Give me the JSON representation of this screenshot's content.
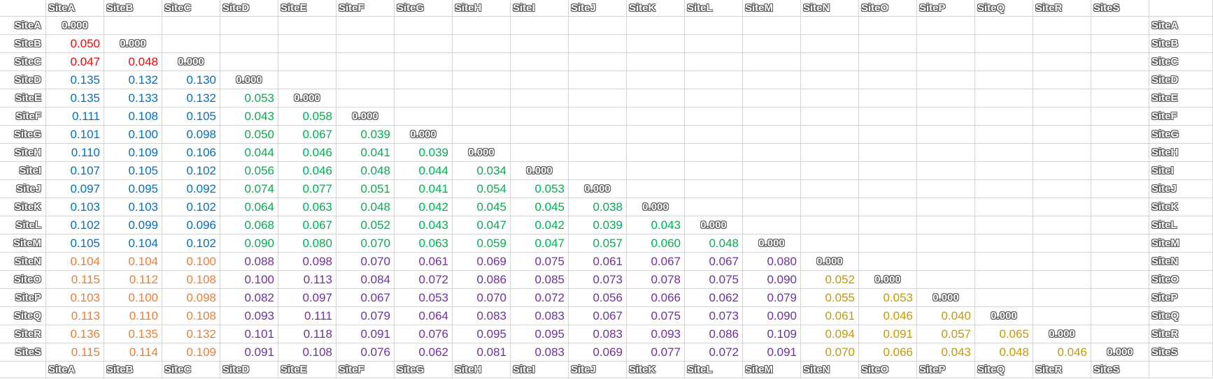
{
  "sheet": {
    "sites": [
      "SiteA",
      "SiteB",
      "SiteC",
      "SiteD",
      "SiteE",
      "SiteF",
      "SiteG",
      "SiteH",
      "SiteI",
      "SiteJ",
      "SiteK",
      "SiteL",
      "SiteM",
      "SiteN",
      "SiteO",
      "SiteP",
      "SiteQ",
      "SiteR",
      "SiteS"
    ],
    "colors": {
      "red": "#ff0000",
      "blue": "#0070c0",
      "green": "#00b050",
      "orange": "#ed7d31",
      "purple": "#7030a0",
      "gold": "#c49a00",
      "diagonal": "#ffffff"
    },
    "rows": [
      {
        "cells": [
          {
            "v": "0.000",
            "c": "diagonal"
          }
        ]
      },
      {
        "cells": [
          {
            "v": "0.050",
            "c": "red"
          },
          {
            "v": "0.000",
            "c": "diagonal"
          }
        ]
      },
      {
        "cells": [
          {
            "v": "0.047",
            "c": "red"
          },
          {
            "v": "0.048",
            "c": "red"
          },
          {
            "v": "0.000",
            "c": "diagonal"
          }
        ]
      },
      {
        "cells": [
          {
            "v": "0.135",
            "c": "blue"
          },
          {
            "v": "0.132",
            "c": "blue"
          },
          {
            "v": "0.130",
            "c": "blue"
          },
          {
            "v": "0.000",
            "c": "diagonal"
          }
        ]
      },
      {
        "cells": [
          {
            "v": "0.135",
            "c": "blue"
          },
          {
            "v": "0.133",
            "c": "blue"
          },
          {
            "v": "0.132",
            "c": "blue"
          },
          {
            "v": "0.053",
            "c": "green"
          },
          {
            "v": "0.000",
            "c": "diagonal"
          }
        ]
      },
      {
        "cells": [
          {
            "v": "0.111",
            "c": "blue"
          },
          {
            "v": "0.108",
            "c": "blue"
          },
          {
            "v": "0.105",
            "c": "blue"
          },
          {
            "v": "0.043",
            "c": "green"
          },
          {
            "v": "0.058",
            "c": "green"
          },
          {
            "v": "0.000",
            "c": "diagonal"
          }
        ]
      },
      {
        "cells": [
          {
            "v": "0.101",
            "c": "blue"
          },
          {
            "v": "0.100",
            "c": "blue"
          },
          {
            "v": "0.098",
            "c": "blue"
          },
          {
            "v": "0.050",
            "c": "green"
          },
          {
            "v": "0.067",
            "c": "green"
          },
          {
            "v": "0.039",
            "c": "green"
          },
          {
            "v": "0.000",
            "c": "diagonal"
          }
        ]
      },
      {
        "cells": [
          {
            "v": "0.110",
            "c": "blue"
          },
          {
            "v": "0.109",
            "c": "blue"
          },
          {
            "v": "0.106",
            "c": "blue"
          },
          {
            "v": "0.044",
            "c": "green"
          },
          {
            "v": "0.046",
            "c": "green"
          },
          {
            "v": "0.041",
            "c": "green"
          },
          {
            "v": "0.039",
            "c": "green"
          },
          {
            "v": "0.000",
            "c": "diagonal"
          }
        ]
      },
      {
        "cells": [
          {
            "v": "0.107",
            "c": "blue"
          },
          {
            "v": "0.105",
            "c": "blue"
          },
          {
            "v": "0.102",
            "c": "blue"
          },
          {
            "v": "0.056",
            "c": "green"
          },
          {
            "v": "0.046",
            "c": "green"
          },
          {
            "v": "0.048",
            "c": "green"
          },
          {
            "v": "0.044",
            "c": "green"
          },
          {
            "v": "0.034",
            "c": "green"
          },
          {
            "v": "0.000",
            "c": "diagonal"
          }
        ]
      },
      {
        "cells": [
          {
            "v": "0.097",
            "c": "blue"
          },
          {
            "v": "0.095",
            "c": "blue"
          },
          {
            "v": "0.092",
            "c": "blue"
          },
          {
            "v": "0.074",
            "c": "green"
          },
          {
            "v": "0.077",
            "c": "green"
          },
          {
            "v": "0.051",
            "c": "green"
          },
          {
            "v": "0.041",
            "c": "green"
          },
          {
            "v": "0.054",
            "c": "green"
          },
          {
            "v": "0.053",
            "c": "green"
          },
          {
            "v": "0.000",
            "c": "diagonal"
          }
        ]
      },
      {
        "cells": [
          {
            "v": "0.103",
            "c": "blue"
          },
          {
            "v": "0.103",
            "c": "blue"
          },
          {
            "v": "0.102",
            "c": "blue"
          },
          {
            "v": "0.064",
            "c": "green"
          },
          {
            "v": "0.063",
            "c": "green"
          },
          {
            "v": "0.048",
            "c": "green"
          },
          {
            "v": "0.042",
            "c": "green"
          },
          {
            "v": "0.045",
            "c": "green"
          },
          {
            "v": "0.045",
            "c": "green"
          },
          {
            "v": "0.038",
            "c": "green"
          },
          {
            "v": "0.000",
            "c": "diagonal"
          }
        ]
      },
      {
        "cells": [
          {
            "v": "0.102",
            "c": "blue"
          },
          {
            "v": "0.099",
            "c": "blue"
          },
          {
            "v": "0.096",
            "c": "blue"
          },
          {
            "v": "0.068",
            "c": "green"
          },
          {
            "v": "0.067",
            "c": "green"
          },
          {
            "v": "0.052",
            "c": "green"
          },
          {
            "v": "0.043",
            "c": "green"
          },
          {
            "v": "0.047",
            "c": "green"
          },
          {
            "v": "0.042",
            "c": "green"
          },
          {
            "v": "0.039",
            "c": "green"
          },
          {
            "v": "0.043",
            "c": "green"
          },
          {
            "v": "0.000",
            "c": "diagonal"
          }
        ]
      },
      {
        "cells": [
          {
            "v": "0.105",
            "c": "blue"
          },
          {
            "v": "0.104",
            "c": "blue"
          },
          {
            "v": "0.102",
            "c": "blue"
          },
          {
            "v": "0.090",
            "c": "green"
          },
          {
            "v": "0.080",
            "c": "green"
          },
          {
            "v": "0.070",
            "c": "green"
          },
          {
            "v": "0.063",
            "c": "green"
          },
          {
            "v": "0.059",
            "c": "green"
          },
          {
            "v": "0.047",
            "c": "green"
          },
          {
            "v": "0.057",
            "c": "green"
          },
          {
            "v": "0.060",
            "c": "green"
          },
          {
            "v": "0.048",
            "c": "green"
          },
          {
            "v": "0.000",
            "c": "diagonal"
          }
        ]
      },
      {
        "cells": [
          {
            "v": "0.104",
            "c": "orange"
          },
          {
            "v": "0.104",
            "c": "orange"
          },
          {
            "v": "0.100",
            "c": "orange"
          },
          {
            "v": "0.088",
            "c": "purple"
          },
          {
            "v": "0.098",
            "c": "purple"
          },
          {
            "v": "0.070",
            "c": "purple"
          },
          {
            "v": "0.061",
            "c": "purple"
          },
          {
            "v": "0.069",
            "c": "purple"
          },
          {
            "v": "0.075",
            "c": "purple"
          },
          {
            "v": "0.061",
            "c": "purple"
          },
          {
            "v": "0.067",
            "c": "purple"
          },
          {
            "v": "0.067",
            "c": "purple"
          },
          {
            "v": "0.080",
            "c": "purple"
          },
          {
            "v": "0.000",
            "c": "diagonal"
          }
        ]
      },
      {
        "cells": [
          {
            "v": "0.115",
            "c": "orange"
          },
          {
            "v": "0.112",
            "c": "orange"
          },
          {
            "v": "0.108",
            "c": "orange"
          },
          {
            "v": "0.100",
            "c": "purple"
          },
          {
            "v": "0.113",
            "c": "purple"
          },
          {
            "v": "0.084",
            "c": "purple"
          },
          {
            "v": "0.072",
            "c": "purple"
          },
          {
            "v": "0.086",
            "c": "purple"
          },
          {
            "v": "0.085",
            "c": "purple"
          },
          {
            "v": "0.073",
            "c": "purple"
          },
          {
            "v": "0.078",
            "c": "purple"
          },
          {
            "v": "0.075",
            "c": "purple"
          },
          {
            "v": "0.090",
            "c": "purple"
          },
          {
            "v": "0.052",
            "c": "gold"
          },
          {
            "v": "0.000",
            "c": "diagonal"
          }
        ]
      },
      {
        "cells": [
          {
            "v": "0.103",
            "c": "orange"
          },
          {
            "v": "0.100",
            "c": "orange"
          },
          {
            "v": "0.098",
            "c": "orange"
          },
          {
            "v": "0.082",
            "c": "purple"
          },
          {
            "v": "0.097",
            "c": "purple"
          },
          {
            "v": "0.067",
            "c": "purple"
          },
          {
            "v": "0.053",
            "c": "purple"
          },
          {
            "v": "0.070",
            "c": "purple"
          },
          {
            "v": "0.072",
            "c": "purple"
          },
          {
            "v": "0.056",
            "c": "purple"
          },
          {
            "v": "0.066",
            "c": "purple"
          },
          {
            "v": "0.062",
            "c": "purple"
          },
          {
            "v": "0.079",
            "c": "purple"
          },
          {
            "v": "0.055",
            "c": "gold"
          },
          {
            "v": "0.053",
            "c": "gold"
          },
          {
            "v": "0.000",
            "c": "diagonal"
          }
        ]
      },
      {
        "cells": [
          {
            "v": "0.113",
            "c": "orange"
          },
          {
            "v": "0.110",
            "c": "orange"
          },
          {
            "v": "0.108",
            "c": "orange"
          },
          {
            "v": "0.093",
            "c": "purple"
          },
          {
            "v": "0.111",
            "c": "purple"
          },
          {
            "v": "0.079",
            "c": "purple"
          },
          {
            "v": "0.064",
            "c": "purple"
          },
          {
            "v": "0.083",
            "c": "purple"
          },
          {
            "v": "0.083",
            "c": "purple"
          },
          {
            "v": "0.067",
            "c": "purple"
          },
          {
            "v": "0.075",
            "c": "purple"
          },
          {
            "v": "0.073",
            "c": "purple"
          },
          {
            "v": "0.090",
            "c": "purple"
          },
          {
            "v": "0.061",
            "c": "gold"
          },
          {
            "v": "0.046",
            "c": "gold"
          },
          {
            "v": "0.040",
            "c": "gold"
          },
          {
            "v": "0.000",
            "c": "diagonal"
          }
        ]
      },
      {
        "cells": [
          {
            "v": "0.136",
            "c": "orange"
          },
          {
            "v": "0.135",
            "c": "orange"
          },
          {
            "v": "0.132",
            "c": "orange"
          },
          {
            "v": "0.101",
            "c": "purple"
          },
          {
            "v": "0.118",
            "c": "purple"
          },
          {
            "v": "0.091",
            "c": "purple"
          },
          {
            "v": "0.076",
            "c": "purple"
          },
          {
            "v": "0.095",
            "c": "purple"
          },
          {
            "v": "0.095",
            "c": "purple"
          },
          {
            "v": "0.083",
            "c": "purple"
          },
          {
            "v": "0.093",
            "c": "purple"
          },
          {
            "v": "0.086",
            "c": "purple"
          },
          {
            "v": "0.109",
            "c": "purple"
          },
          {
            "v": "0.094",
            "c": "gold"
          },
          {
            "v": "0.091",
            "c": "gold"
          },
          {
            "v": "0.057",
            "c": "gold"
          },
          {
            "v": "0.065",
            "c": "gold"
          },
          {
            "v": "0.000",
            "c": "diagonal"
          }
        ]
      },
      {
        "cells": [
          {
            "v": "0.115",
            "c": "orange"
          },
          {
            "v": "0.114",
            "c": "orange"
          },
          {
            "v": "0.109",
            "c": "orange"
          },
          {
            "v": "0.091",
            "c": "purple"
          },
          {
            "v": "0.108",
            "c": "purple"
          },
          {
            "v": "0.076",
            "c": "purple"
          },
          {
            "v": "0.062",
            "c": "purple"
          },
          {
            "v": "0.081",
            "c": "purple"
          },
          {
            "v": "0.083",
            "c": "purple"
          },
          {
            "v": "0.069",
            "c": "purple"
          },
          {
            "v": "0.077",
            "c": "purple"
          },
          {
            "v": "0.072",
            "c": "purple"
          },
          {
            "v": "0.091",
            "c": "purple"
          },
          {
            "v": "0.070",
            "c": "gold"
          },
          {
            "v": "0.066",
            "c": "gold"
          },
          {
            "v": "0.043",
            "c": "gold"
          },
          {
            "v": "0.048",
            "c": "gold"
          },
          {
            "v": "0.046",
            "c": "gold"
          },
          {
            "v": "0.000",
            "c": "diagonal"
          }
        ]
      }
    ]
  }
}
